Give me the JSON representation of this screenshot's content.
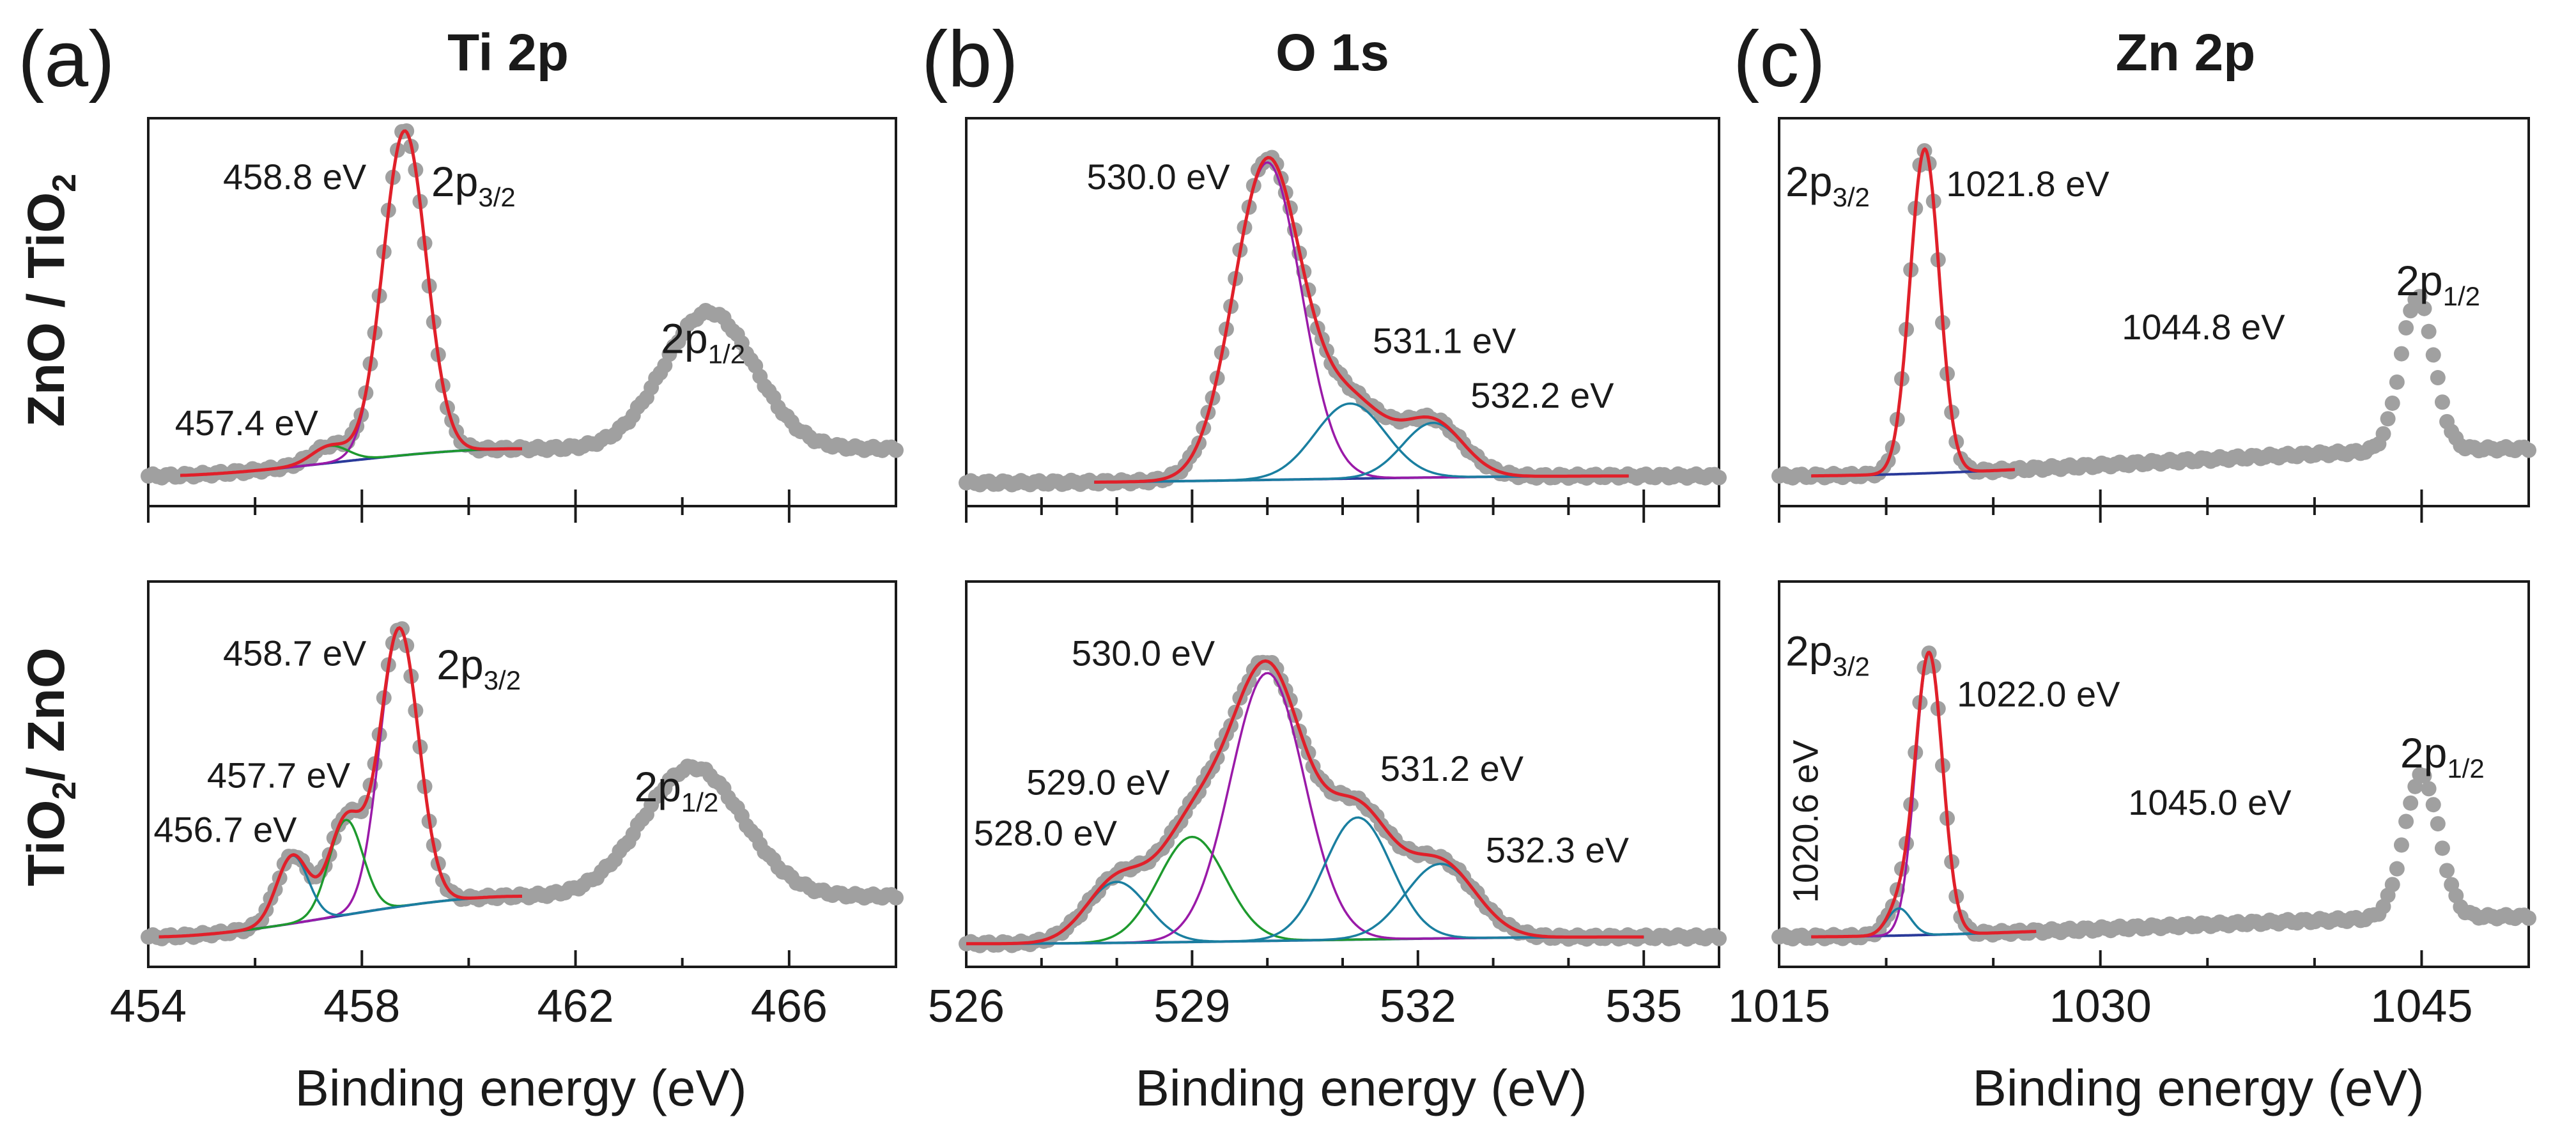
{
  "panels": [
    {
      "letter": "(a)",
      "title": "Ti 2p",
      "xlabel": "Binding energy (eV)",
      "xlim": [
        454,
        468
      ],
      "ticks": [
        454,
        458,
        462,
        466
      ],
      "tick_labels": [
        "454",
        "458",
        "462",
        "466"
      ],
      "minor_ticks": [
        456,
        460,
        464
      ],
      "sample": {
        "top": "Ti 2p",
        "bottom": "Ti 2p"
      }
    },
    {
      "letter": "(b)",
      "title": "O 1s",
      "xlabel": "Binding energy (eV)",
      "xlim": [
        526,
        536
      ],
      "ticks": [
        526,
        529,
        532,
        535
      ],
      "tick_labels": [
        "526",
        "529",
        "532",
        "535"
      ],
      "minor_ticks": [
        527,
        528,
        530,
        531,
        533,
        534
      ]
    },
    {
      "letter": "(c)",
      "title": "Zn 2p",
      "xlabel": "Binding energy (eV)",
      "xlim": [
        1015,
        1050
      ],
      "ticks": [
        1015,
        1030,
        1045
      ],
      "tick_labels": [
        "1015",
        "1030",
        "1045"
      ],
      "minor_ticks": [
        1020,
        1025,
        1035,
        1040
      ]
    }
  ],
  "rows": [
    {
      "label_parts": [
        "ZnO / TiO",
        "2"
      ]
    },
    {
      "label_parts": [
        "TiO",
        "2",
        "/ ZnO"
      ]
    }
  ],
  "colors": {
    "data": "#a0a0a0",
    "envelope": "#e0202a",
    "main_component": "#9a1aa8",
    "doublet_component": "#1e9a2e",
    "defect_component": "#1a7fa0",
    "baseline": "#2a3a9a",
    "shirley": "#111111"
  },
  "chart_data": [
    {
      "id": "a_top",
      "type": "line",
      "panel": "(a)",
      "row": "ZnO / TiO2",
      "xlim": [
        454,
        468
      ],
      "ylim": [
        0,
        1
      ],
      "baseline": [
        [
          454,
          0.02
        ],
        [
          461,
          0.1
        ]
      ],
      "peaks": [
        {
          "center": 458.8,
          "height": 0.95,
          "fwhm": 0.95,
          "role": "main"
        },
        {
          "center": 457.4,
          "height": 0.05,
          "fwhm": 0.8,
          "role": "doublet"
        },
        {
          "center": 464.5,
          "height": 0.4,
          "fwhm": 2.0,
          "role": "raw_only"
        }
      ],
      "fit_range": [
        454.6,
        461.0
      ],
      "labels": [
        {
          "text": "458.8 eV",
          "x": 455.4,
          "y": 0.86
        },
        {
          "text": "457.4 eV",
          "x": 454.5,
          "y": 0.14
        }
      ],
      "orbitals": [
        {
          "main": "2p",
          "sub": "3/2",
          "x": 459.3,
          "y": 0.84
        },
        {
          "main": "2p",
          "sub": "1/2",
          "x": 463.6,
          "y": 0.38
        }
      ]
    },
    {
      "id": "b_top",
      "type": "line",
      "panel": "(b)",
      "row": "ZnO / TiO2",
      "xlim": [
        526,
        536
      ],
      "ylim": [
        0,
        1
      ],
      "baseline": [
        [
          526,
          0.0
        ],
        [
          534.8,
          0.02
        ]
      ],
      "peaks": [
        {
          "center": 530.0,
          "height": 0.93,
          "fwhm": 1.05,
          "role": "main"
        },
        {
          "center": 531.1,
          "height": 0.22,
          "fwhm": 1.1,
          "role": "defect"
        },
        {
          "center": 532.2,
          "height": 0.16,
          "fwhm": 0.95,
          "role": "defect"
        }
      ],
      "fit_range": [
        527.7,
        534.8
      ],
      "labels": [
        {
          "text": "530.0 eV",
          "x": 527.6,
          "y": 0.86
        },
        {
          "text": "531.1 eV",
          "x": 531.4,
          "y": 0.38
        },
        {
          "text": "532.2 eV",
          "x": 532.7,
          "y": 0.22
        }
      ],
      "orbitals": []
    },
    {
      "id": "c_top",
      "type": "line",
      "panel": "(c)",
      "row": "ZnO / TiO2",
      "xlim": [
        1015,
        1050
      ],
      "ylim": [
        0,
        1
      ],
      "baseline": [
        [
          1015,
          0.02
        ],
        [
          1050,
          0.1
        ]
      ],
      "peaks": [
        {
          "center": 1021.8,
          "height": 0.95,
          "fwhm": 1.6,
          "role": "main"
        },
        {
          "center": 1044.8,
          "height": 0.45,
          "fwhm": 1.8,
          "role": "raw_only"
        }
      ],
      "fit_range": [
        1016.5,
        1026.0
      ],
      "labels": [
        {
          "text": "1021.8 eV",
          "x": 1022.8,
          "y": 0.84
        },
        {
          "text": "1044.8 eV",
          "x": 1031.0,
          "y": 0.42
        }
      ],
      "orbitals": [
        {
          "main": "2p",
          "sub": "3/2",
          "x": 1015.3,
          "y": 0.84
        },
        {
          "main": "2p",
          "sub": "1/2",
          "x": 1043.8,
          "y": 0.55
        }
      ]
    },
    {
      "id": "a_bottom",
      "type": "line",
      "panel": "(a)",
      "row": "TiO2/ ZnO",
      "xlim": [
        454,
        468
      ],
      "ylim": [
        0,
        1
      ],
      "baseline": [
        [
          454,
          0.02
        ],
        [
          461,
          0.14
        ]
      ],
      "peaks": [
        {
          "center": 458.7,
          "height": 0.82,
          "fwhm": 0.85,
          "role": "main"
        },
        {
          "center": 457.7,
          "height": 0.28,
          "fwhm": 0.75,
          "role": "doublet"
        },
        {
          "center": 456.7,
          "height": 0.2,
          "fwhm": 0.7,
          "role": "defect"
        },
        {
          "center": 464.2,
          "height": 0.38,
          "fwhm": 2.2,
          "role": "raw_only"
        }
      ],
      "fit_range": [
        454.2,
        461.0
      ],
      "labels": [
        {
          "text": "458.7 eV",
          "x": 455.4,
          "y": 0.82
        },
        {
          "text": "457.7 eV",
          "x": 455.1,
          "y": 0.46
        },
        {
          "text": "456.7 eV",
          "x": 454.1,
          "y": 0.3
        }
      ],
      "orbitals": [
        {
          "main": "2p",
          "sub": "3/2",
          "x": 459.4,
          "y": 0.78
        },
        {
          "main": "2p",
          "sub": "1/2",
          "x": 463.1,
          "y": 0.42
        }
      ]
    },
    {
      "id": "b_bottom",
      "type": "line",
      "panel": "(b)",
      "row": "TiO2/ ZnO",
      "xlim": [
        526,
        536
      ],
      "ylim": [
        0,
        1
      ],
      "baseline": [
        [
          526,
          0.0
        ],
        [
          535.0,
          0.02
        ]
      ],
      "peaks": [
        {
          "center": 528.0,
          "height": 0.18,
          "fwhm": 0.95,
          "role": "defect"
        },
        {
          "center": 529.0,
          "height": 0.31,
          "fwhm": 1.05,
          "role": "doublet"
        },
        {
          "center": 530.0,
          "height": 0.79,
          "fwhm": 1.15,
          "role": "main"
        },
        {
          "center": 531.2,
          "height": 0.36,
          "fwhm": 1.05,
          "role": "defect"
        },
        {
          "center": 532.3,
          "height": 0.22,
          "fwhm": 1.1,
          "role": "defect"
        }
      ],
      "fit_range": [
        526.0,
        535.0
      ],
      "labels": [
        {
          "text": "530.0 eV",
          "x": 527.4,
          "y": 0.82
        },
        {
          "text": "529.0 eV",
          "x": 526.8,
          "y": 0.44
        },
        {
          "text": "528.0 eV",
          "x": 526.1,
          "y": 0.29
        },
        {
          "text": "531.2 eV",
          "x": 531.5,
          "y": 0.48
        },
        {
          "text": "532.3 eV",
          "x": 532.9,
          "y": 0.24
        }
      ],
      "orbitals": []
    },
    {
      "id": "c_bottom",
      "type": "line",
      "panel": "(c)",
      "row": "TiO2/ ZnO",
      "xlim": [
        1015,
        1050
      ],
      "ylim": [
        0,
        1
      ],
      "baseline": [
        [
          1015,
          0.02
        ],
        [
          1050,
          0.08
        ]
      ],
      "peaks": [
        {
          "center": 1022.0,
          "height": 0.83,
          "fwhm": 1.5,
          "role": "main"
        },
        {
          "center": 1020.6,
          "height": 0.08,
          "fwhm": 1.3,
          "role": "defect"
        },
        {
          "center": 1045.0,
          "height": 0.42,
          "fwhm": 1.9,
          "role": "raw_only"
        }
      ],
      "fit_range": [
        1016.5,
        1027.0
      ],
      "labels": [
        {
          "text": "1022.0 eV",
          "x": 1023.3,
          "y": 0.7
        },
        {
          "text": "1045.0 eV",
          "x": 1031.3,
          "y": 0.38
        }
      ],
      "vertical_labels": [
        {
          "text": "1020.6 eV",
          "x": 1016.8,
          "y": 0.12
        }
      ],
      "orbitals": [
        {
          "main": "2p",
          "sub": "3/2",
          "x": 1015.3,
          "y": 0.82
        },
        {
          "main": "2p",
          "sub": "1/2",
          "x": 1044.0,
          "y": 0.52
        }
      ]
    }
  ]
}
